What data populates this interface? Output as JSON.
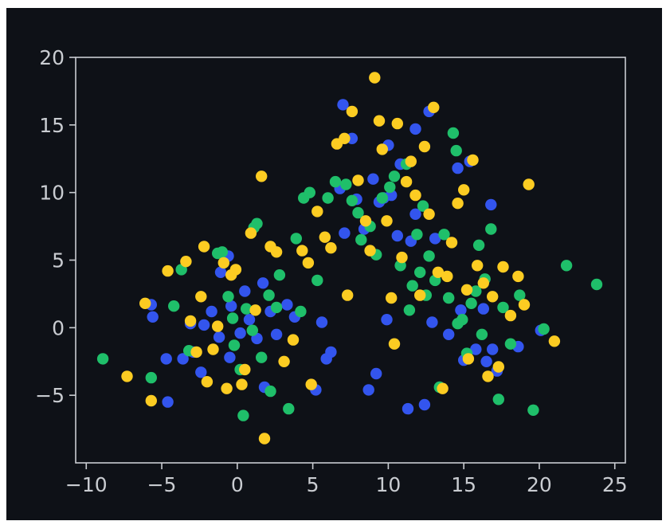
{
  "chart_data": {
    "type": "scatter",
    "title": "",
    "xlabel": "",
    "ylabel": "",
    "xlim": [
      -10.7,
      25.7
    ],
    "ylim": [
      -10.0,
      20.0
    ],
    "xticks": [
      -10,
      -5,
      0,
      5,
      10,
      15,
      20,
      25
    ],
    "yticks": [
      -5,
      0,
      5,
      10,
      15,
      20
    ],
    "xtick_labels": [
      "−10",
      "−5",
      "0",
      "5",
      "10",
      "15",
      "20",
      "25"
    ],
    "ytick_labels": [
      "−5",
      "0",
      "5",
      "10",
      "15",
      "20"
    ],
    "grid": false,
    "legend": "none",
    "colors": {
      "background": "#0e1117",
      "axes": "#c9ccd1",
      "blue": "#3355ee",
      "green": "#1fbf6a",
      "yellow": "#fccc22"
    },
    "series": [
      {
        "color": "blue",
        "points": [
          [
            -5.7,
            1.7
          ],
          [
            -5.6,
            0.8
          ],
          [
            -4.7,
            -2.3
          ],
          [
            -4.6,
            -5.5
          ],
          [
            -3.6,
            -2.3
          ],
          [
            -3.1,
            0.3
          ],
          [
            -2.9,
            -1.8
          ],
          [
            -2.4,
            -3.3
          ],
          [
            -2.2,
            0.2
          ],
          [
            -1.7,
            1.2
          ],
          [
            -1.2,
            -0.7
          ],
          [
            -1.1,
            4.1
          ],
          [
            -0.6,
            5.3
          ],
          [
            -0.5,
            -2.2
          ],
          [
            -0.4,
            1.6
          ],
          [
            0.2,
            -0.4
          ],
          [
            0.5,
            2.7
          ],
          [
            0.8,
            0.6
          ],
          [
            1.3,
            -0.8
          ],
          [
            1.7,
            3.3
          ],
          [
            1.8,
            -4.4
          ],
          [
            2.2,
            1.2
          ],
          [
            2.6,
            -0.5
          ],
          [
            3.3,
            1.7
          ],
          [
            3.8,
            0.8
          ],
          [
            5.2,
            -4.6
          ],
          [
            5.6,
            0.4
          ],
          [
            5.9,
            -2.3
          ],
          [
            6.2,
            -1.8
          ],
          [
            6.8,
            10.3
          ],
          [
            7.0,
            16.5
          ],
          [
            7.1,
            7.0
          ],
          [
            7.6,
            14.0
          ],
          [
            7.9,
            9.5
          ],
          [
            8.4,
            7.3
          ],
          [
            8.7,
            -4.6
          ],
          [
            9.0,
            11.0
          ],
          [
            9.2,
            -3.4
          ],
          [
            9.4,
            9.3
          ],
          [
            9.7,
            9.6
          ],
          [
            9.9,
            0.6
          ],
          [
            10.0,
            13.5
          ],
          [
            10.2,
            9.8
          ],
          [
            10.6,
            6.8
          ],
          [
            10.8,
            12.1
          ],
          [
            11.3,
            -6.0
          ],
          [
            11.5,
            6.4
          ],
          [
            11.8,
            8.4
          ],
          [
            11.8,
            14.7
          ],
          [
            12.4,
            -5.7
          ],
          [
            12.7,
            16.0
          ],
          [
            12.9,
            0.4
          ],
          [
            13.1,
            6.6
          ],
          [
            14.0,
            -0.5
          ],
          [
            14.6,
            11.8
          ],
          [
            14.8,
            1.3
          ],
          [
            15.0,
            -2.4
          ],
          [
            15.4,
            12.3
          ],
          [
            15.8,
            -1.6
          ],
          [
            16.3,
            1.4
          ],
          [
            16.5,
            -2.5
          ],
          [
            16.8,
            9.1
          ],
          [
            16.9,
            -1.6
          ],
          [
            17.2,
            -3.2
          ],
          [
            18.6,
            -1.4
          ],
          [
            20.1,
            -0.2
          ]
        ]
      },
      {
        "color": "green",
        "points": [
          [
            -8.9,
            -2.3
          ],
          [
            -5.7,
            -3.7
          ],
          [
            -4.2,
            1.6
          ],
          [
            -3.7,
            4.3
          ],
          [
            -3.2,
            -1.7
          ],
          [
            -1.3,
            5.5
          ],
          [
            -1.0,
            5.6
          ],
          [
            -0.6,
            2.3
          ],
          [
            -0.3,
            0.7
          ],
          [
            -0.2,
            -1.3
          ],
          [
            0.2,
            -3.1
          ],
          [
            0.4,
            -6.5
          ],
          [
            0.6,
            1.4
          ],
          [
            1.0,
            -0.2
          ],
          [
            1.1,
            7.4
          ],
          [
            1.3,
            7.7
          ],
          [
            1.6,
            -2.2
          ],
          [
            2.1,
            2.4
          ],
          [
            2.2,
            -4.7
          ],
          [
            2.6,
            1.5
          ],
          [
            2.8,
            3.9
          ],
          [
            3.4,
            -6.0
          ],
          [
            3.9,
            6.6
          ],
          [
            4.2,
            1.2
          ],
          [
            4.4,
            9.6
          ],
          [
            4.8,
            10.0
          ],
          [
            5.3,
            3.5
          ],
          [
            6.0,
            9.6
          ],
          [
            6.5,
            10.8
          ],
          [
            7.2,
            10.6
          ],
          [
            7.6,
            9.4
          ],
          [
            8.0,
            8.5
          ],
          [
            8.2,
            6.5
          ],
          [
            8.8,
            7.5
          ],
          [
            9.2,
            5.4
          ],
          [
            9.6,
            9.6
          ],
          [
            10.1,
            10.4
          ],
          [
            10.4,
            11.2
          ],
          [
            10.8,
            4.6
          ],
          [
            11.2,
            12.1
          ],
          [
            11.4,
            1.3
          ],
          [
            11.6,
            3.1
          ],
          [
            11.9,
            6.9
          ],
          [
            12.1,
            4.1
          ],
          [
            12.3,
            9.0
          ],
          [
            12.5,
            2.4
          ],
          [
            12.7,
            5.3
          ],
          [
            13.1,
            3.5
          ],
          [
            13.4,
            -4.4
          ],
          [
            13.7,
            6.9
          ],
          [
            14.0,
            2.2
          ],
          [
            14.3,
            14.4
          ],
          [
            14.5,
            13.1
          ],
          [
            14.9,
            0.6
          ],
          [
            15.2,
            -1.9
          ],
          [
            15.5,
            1.8
          ],
          [
            15.8,
            2.7
          ],
          [
            16.2,
            -0.5
          ],
          [
            16.4,
            3.6
          ],
          [
            16.8,
            7.3
          ],
          [
            17.3,
            -5.3
          ],
          [
            17.6,
            1.5
          ],
          [
            18.1,
            -1.2
          ],
          [
            18.7,
            2.4
          ],
          [
            19.6,
            -6.1
          ],
          [
            21.8,
            4.6
          ],
          [
            23.8,
            3.2
          ],
          [
            20.3,
            -0.1
          ],
          [
            14.6,
            0.3
          ],
          [
            16.0,
            6.1
          ]
        ]
      },
      {
        "color": "yellow",
        "points": [
          [
            -7.3,
            -3.6
          ],
          [
            -6.1,
            1.8
          ],
          [
            -5.7,
            -5.4
          ],
          [
            -4.6,
            4.2
          ],
          [
            -3.4,
            4.9
          ],
          [
            -3.1,
            0.5
          ],
          [
            -2.7,
            -1.8
          ],
          [
            -2.4,
            2.3
          ],
          [
            -2.2,
            6.0
          ],
          [
            -2.0,
            -4.0
          ],
          [
            -1.6,
            -1.6
          ],
          [
            -1.3,
            0.1
          ],
          [
            -0.9,
            4.8
          ],
          [
            -0.7,
            -4.5
          ],
          [
            -0.4,
            3.9
          ],
          [
            -0.1,
            4.3
          ],
          [
            0.3,
            -4.2
          ],
          [
            0.5,
            -3.1
          ],
          [
            0.9,
            7.0
          ],
          [
            1.2,
            1.3
          ],
          [
            1.6,
            11.2
          ],
          [
            1.8,
            -8.2
          ],
          [
            2.2,
            6.0
          ],
          [
            2.6,
            5.6
          ],
          [
            3.1,
            -2.5
          ],
          [
            3.7,
            -0.9
          ],
          [
            4.3,
            5.7
          ],
          [
            4.7,
            4.8
          ],
          [
            4.9,
            -4.2
          ],
          [
            5.3,
            8.6
          ],
          [
            5.8,
            6.7
          ],
          [
            6.2,
            5.9
          ],
          [
            6.6,
            13.6
          ],
          [
            7.1,
            14.0
          ],
          [
            7.3,
            2.4
          ],
          [
            7.6,
            16.0
          ],
          [
            8.0,
            10.9
          ],
          [
            8.5,
            7.9
          ],
          [
            8.8,
            5.7
          ],
          [
            9.1,
            18.5
          ],
          [
            9.4,
            15.3
          ],
          [
            9.6,
            13.2
          ],
          [
            9.9,
            7.9
          ],
          [
            10.2,
            2.2
          ],
          [
            10.4,
            -1.2
          ],
          [
            10.6,
            15.1
          ],
          [
            10.9,
            5.2
          ],
          [
            11.2,
            10.8
          ],
          [
            11.5,
            12.3
          ],
          [
            11.8,
            9.8
          ],
          [
            12.1,
            2.4
          ],
          [
            12.4,
            13.4
          ],
          [
            12.7,
            8.4
          ],
          [
            13.0,
            16.3
          ],
          [
            13.3,
            4.1
          ],
          [
            13.6,
            -4.5
          ],
          [
            13.9,
            3.8
          ],
          [
            14.2,
            6.3
          ],
          [
            14.6,
            9.2
          ],
          [
            15.0,
            10.2
          ],
          [
            15.3,
            -2.3
          ],
          [
            15.6,
            12.4
          ],
          [
            15.9,
            4.6
          ],
          [
            16.3,
            3.3
          ],
          [
            16.6,
            -3.6
          ],
          [
            16.9,
            2.3
          ],
          [
            17.3,
            -2.9
          ],
          [
            17.6,
            4.5
          ],
          [
            18.1,
            0.9
          ],
          [
            18.6,
            3.8
          ],
          [
            19.0,
            1.7
          ],
          [
            19.3,
            10.6
          ],
          [
            21.0,
            -1.0
          ],
          [
            15.2,
            2.8
          ]
        ]
      }
    ]
  }
}
